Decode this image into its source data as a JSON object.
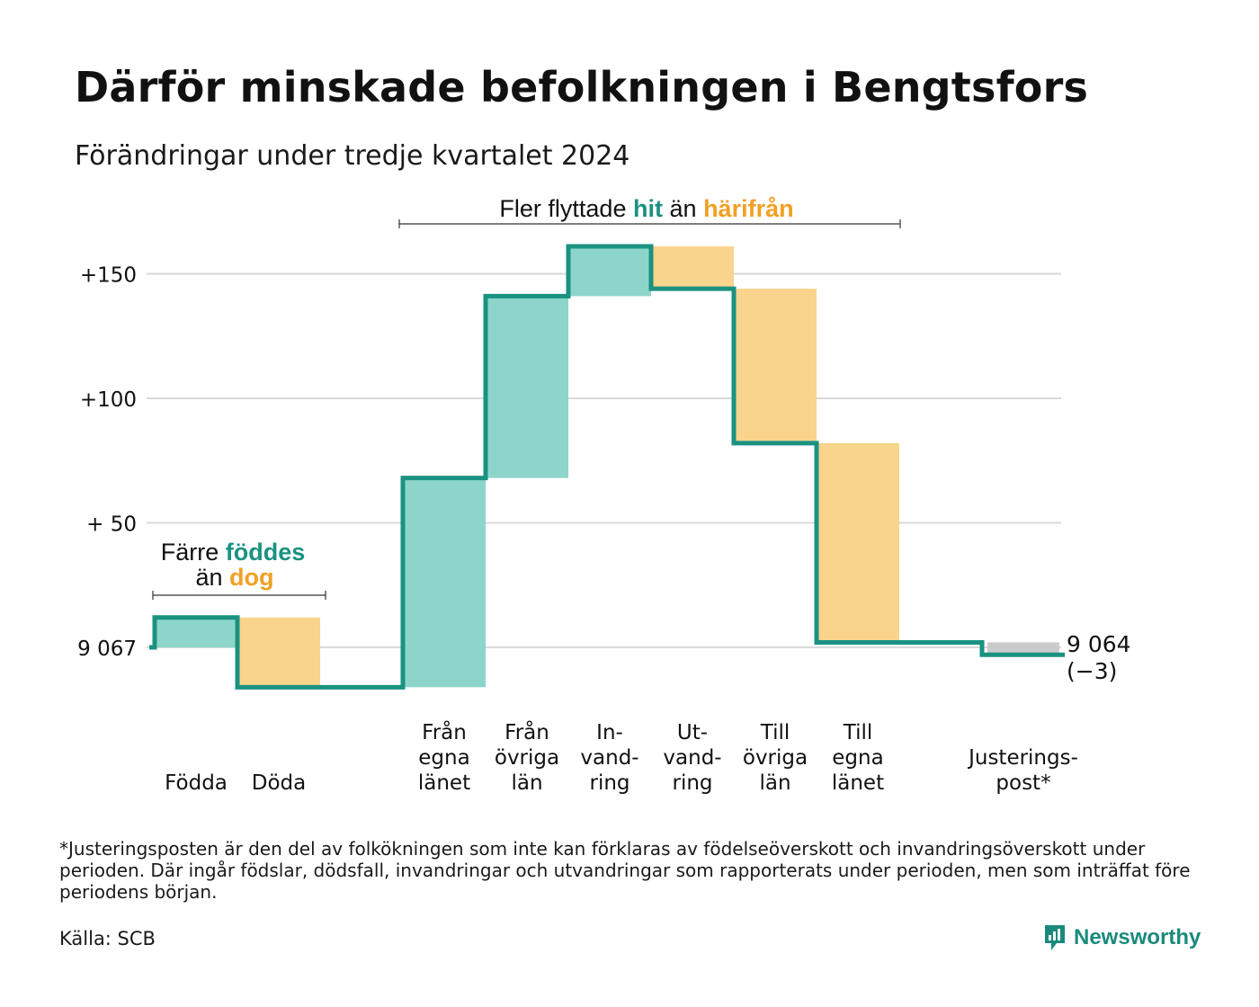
{
  "title": "Därför minskade befolkningen i Bengtsfors",
  "subtitle": "Förändringar under tredje kvartalet 2024",
  "colors": {
    "inflow": "#8dd5cb",
    "outflow": "#f9d48c",
    "adjust": "#cbcbcb",
    "line": "#1a9281",
    "hit_text": "#1a9281",
    "from_text": "#f2a024",
    "grid": "#d9d9d9"
  },
  "annotations": {
    "births_deaths": {
      "prefix": "Färre",
      "hit": "föddes",
      "middle": "än",
      "away": "dog"
    },
    "migration": {
      "prefix": "Fler flyttade",
      "hit": "hit",
      "middle": "än",
      "away": "härifrån"
    }
  },
  "chart_data": {
    "type": "waterfall",
    "baseline_label": "9 067",
    "baseline_value": 9067,
    "y_ticks": [
      {
        "value": 0,
        "label": "9 067"
      },
      {
        "value": 50,
        "label": "+ 50"
      },
      {
        "value": 100,
        "label": "+100"
      },
      {
        "value": 150,
        "label": "+150"
      }
    ],
    "ylim": [
      -17,
      162
    ],
    "categories": [
      {
        "label": [
          "Födda"
        ],
        "change": 12,
        "kind": "inflow"
      },
      {
        "label": [
          "Döda"
        ],
        "change": -28,
        "kind": "outflow"
      },
      {
        "label": [],
        "change": 0,
        "kind": "spacer"
      },
      {
        "label": [
          "Från",
          "egna",
          "länet"
        ],
        "change": 84,
        "kind": "inflow"
      },
      {
        "label": [
          "Från",
          "övriga",
          "län"
        ],
        "change": 73,
        "kind": "inflow"
      },
      {
        "label": [
          "In-",
          "vand-",
          "ring"
        ],
        "change": 20,
        "kind": "inflow"
      },
      {
        "label": [
          "Ut-",
          "vand-",
          "ring"
        ],
        "change": -17,
        "kind": "outflow"
      },
      {
        "label": [
          "Till",
          "övriga",
          "län"
        ],
        "change": -62,
        "kind": "outflow"
      },
      {
        "label": [
          "Till",
          "egna",
          "länet"
        ],
        "change": -80,
        "kind": "outflow"
      },
      {
        "label": [],
        "change": 0,
        "kind": "spacer"
      },
      {
        "label": [
          "Justerings-",
          "post*"
        ],
        "change": -5,
        "kind": "adjust"
      }
    ],
    "end_label": {
      "value": "9 064",
      "change": "(−3)"
    }
  },
  "footnote": "*Justeringsposten är den del av folkökningen som inte kan förklaras av födelseöverskott och invandringsöverskott under perioden. Där ingår födslar, dödsfall, invandringar och utvandringar som rapporterats under perioden, men som inträffat före periodens början.",
  "source": "Källa: SCB",
  "brand": "Newsworthy"
}
